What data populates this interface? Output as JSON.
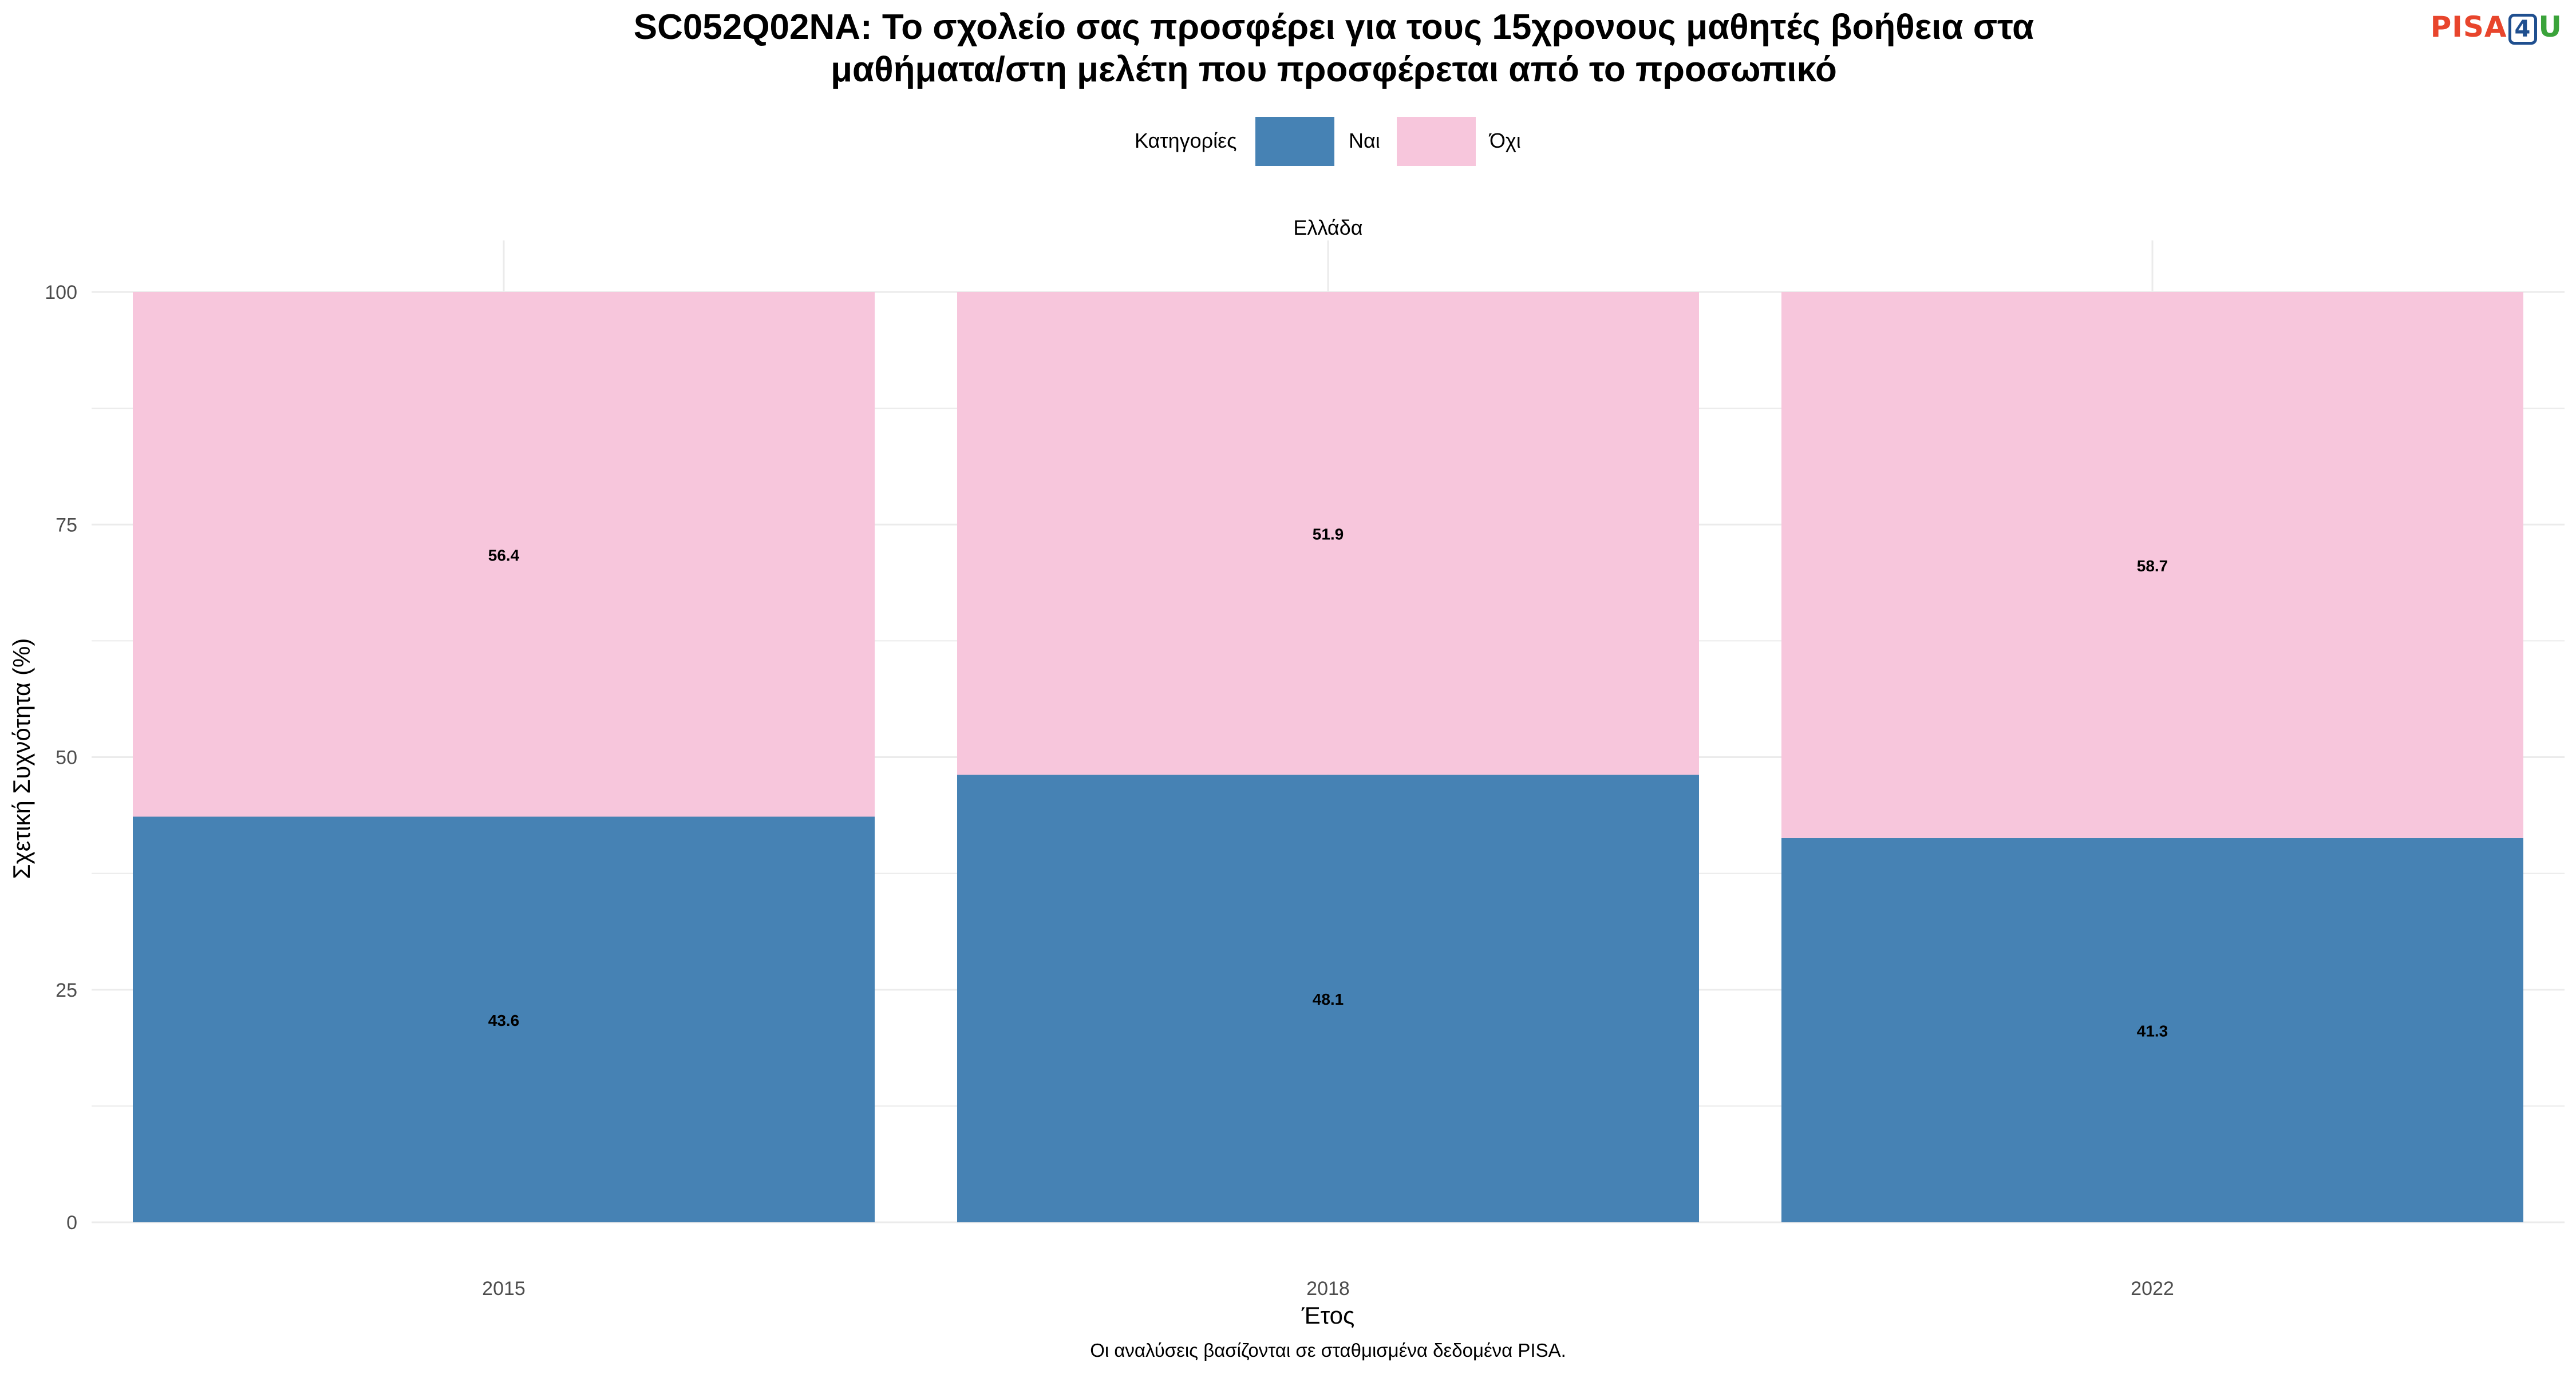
{
  "logo": {
    "text_a": "PISA",
    "text_b": "4",
    "text_c": "U"
  },
  "chart_data": {
    "type": "bar",
    "stacked": true,
    "title_line1": "SC052Q02NA: Το σχολείο σας προσφέρει για τους 15χρονους μαθητές βοήθεια στα",
    "title_line2": "μαθήματα/στη μελέτη που προσφέρεται από το προσωπικό",
    "facet": "Ελλάδα",
    "xlabel": "Έτος",
    "ylabel": "Σχετική Συχνότητα (%)",
    "caption": "Οι αναλύσεις βασίζονται σε σταθμισμένα δεδομένα PISA.",
    "legend_title": "Κατηγορίες",
    "legend_position": "top",
    "categories": [
      "2015",
      "2018",
      "2022"
    ],
    "series": [
      {
        "name": "Ναι",
        "color": "#4682b4",
        "values": [
          43.6,
          48.1,
          41.3
        ]
      },
      {
        "name": "Όχι",
        "color": "#f7c6dc",
        "values": [
          56.4,
          51.9,
          58.7
        ]
      }
    ],
    "ylim": [
      0,
      100
    ],
    "yticks": [
      0,
      25,
      50,
      75,
      100
    ],
    "grid": true
  }
}
